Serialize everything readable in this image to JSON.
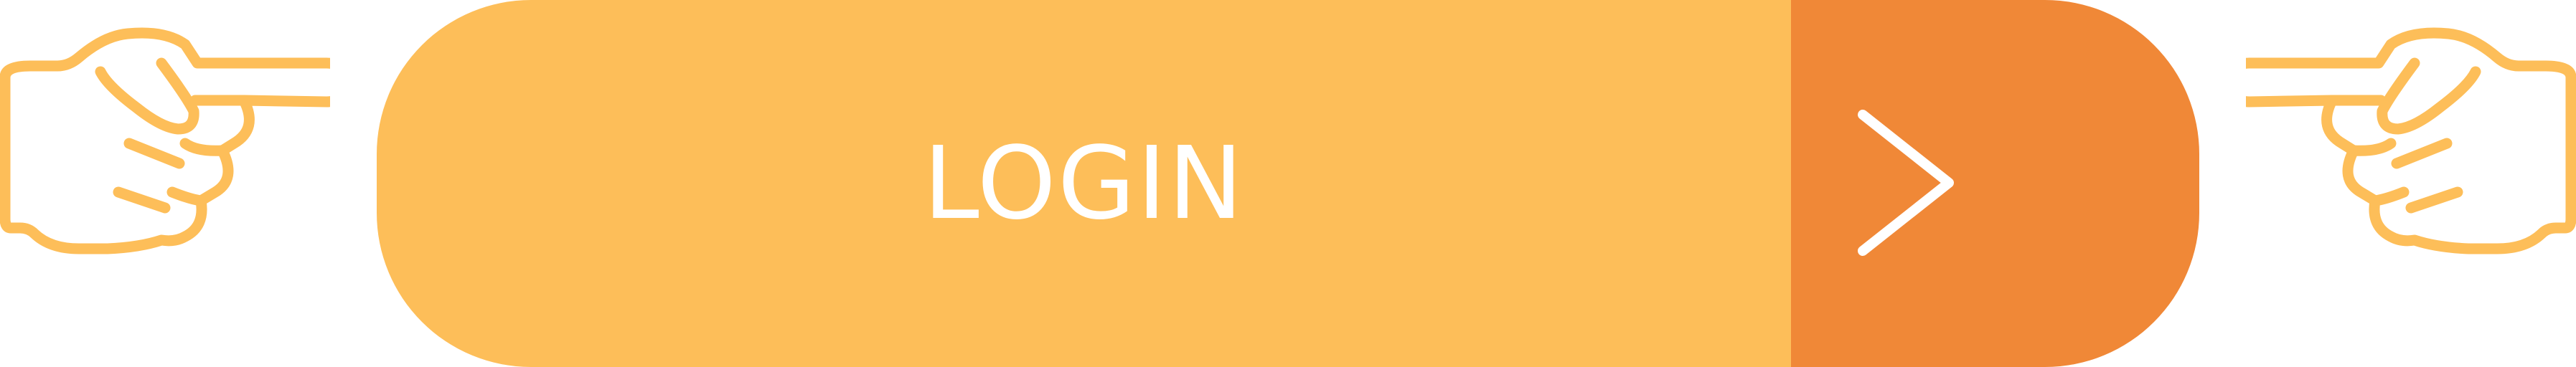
{
  "button": {
    "label": "LOGIN",
    "icon": "chevron-right-icon"
  },
  "decorations": {
    "left_icon": "pointing-hand-right-icon",
    "right_icon": "pointing-hand-left-icon"
  },
  "colors": {
    "button_main": "#FDBE59",
    "button_arrow": "#F08837",
    "hand_outline": "#FDBE59",
    "text": "#FFFFFF"
  }
}
